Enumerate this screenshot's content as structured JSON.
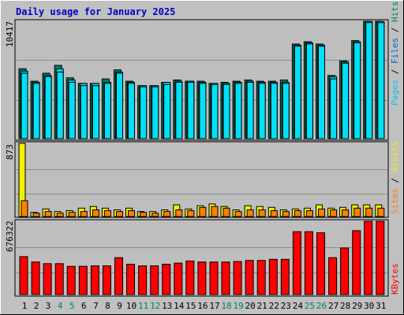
{
  "colors": {
    "background": "#c0c0c0",
    "panel": "#bebebe",
    "gridline": "#8c8c8c",
    "title": "#0000c8",
    "axis_text": "#000000",
    "weekend_text": "#00806a",
    "hits": "#00805c",
    "files": "#00c8e8",
    "pages": "#00e0f8",
    "visits": "#f0f000",
    "sites": "#ff8000",
    "kbytes": "#ff0000"
  },
  "chart_data": {
    "type": "bar",
    "title": "Daily usage for January 2025",
    "categories": [
      "1",
      "2",
      "3",
      "4",
      "5",
      "6",
      "7",
      "8",
      "9",
      "10",
      "11",
      "12",
      "13",
      "14",
      "15",
      "16",
      "17",
      "18",
      "19",
      "20",
      "21",
      "22",
      "23",
      "24",
      "25",
      "26",
      "27",
      "28",
      "29",
      "30",
      "31"
    ],
    "weekend_days": [
      "4",
      "5",
      "11",
      "12",
      "18",
      "19",
      "25",
      "26"
    ],
    "panels": [
      {
        "id": "hits-files-pages",
        "max_label": "10417",
        "ylim": [
          0,
          10417
        ],
        "legend": [
          {
            "label": "Pages",
            "color": "#00c8e8"
          },
          {
            "label": "/",
            "color": "#000000"
          },
          {
            "label": "Files",
            "color": "#0066cc"
          },
          {
            "label": "/",
            "color": "#000000"
          },
          {
            "label": "Hits",
            "color": "#00806a"
          }
        ],
        "series": [
          {
            "name": "Hits",
            "values": [
              6200,
              5100,
              5800,
              6500,
              5400,
              4900,
              4900,
              5300,
              6100,
              5100,
              4700,
              4700,
              5000,
              5200,
              5100,
              5100,
              4900,
              5000,
              5100,
              5200,
              5100,
              5100,
              5200,
              8400,
              8600,
              8400,
              5600,
              6900,
              8700,
              10417,
              10417
            ]
          },
          {
            "name": "Files",
            "values": [
              6000,
              5000,
              5600,
              6200,
              5200,
              4900,
              4900,
              5000,
              5900,
              5000,
              4700,
              4700,
              5000,
              5100,
              5100,
              5000,
              4900,
              4900,
              5000,
              5100,
              5000,
              5000,
              5000,
              8300,
              8500,
              8300,
              5500,
              6800,
              8600,
              10400,
              10400
            ]
          },
          {
            "name": "Pages",
            "values": [
              5800,
              4900,
              5500,
              5900,
              5000,
              4700,
              4700,
              4900,
              5800,
              4900,
              4600,
              4600,
              4800,
              5000,
              5000,
              4900,
              4800,
              4800,
              4900,
              5000,
              4900,
              4900,
              4900,
              8200,
              8400,
              8200,
              5300,
              6700,
              8500,
              10300,
              10300
            ]
          }
        ]
      },
      {
        "id": "visits-sites",
        "max_label": "873",
        "ylim": [
          0,
          873
        ],
        "legend": [
          {
            "label": "Sites",
            "color": "#ff8000"
          },
          {
            "label": "/",
            "color": "#000000"
          },
          {
            "label": "Visits",
            "color": "#f0f000"
          }
        ],
        "series": [
          {
            "name": "Visits",
            "values": [
              873,
              50,
              90,
              60,
              70,
              100,
              120,
              100,
              80,
              100,
              60,
              60,
              80,
              140,
              90,
              130,
              150,
              120,
              80,
              130,
              120,
              110,
              80,
              90,
              100,
              140,
              100,
              110,
              140,
              140,
              140
            ]
          },
          {
            "name": "Sites",
            "values": [
              190,
              40,
              60,
              40,
              50,
              60,
              80,
              70,
              60,
              70,
              50,
              40,
              60,
              80,
              70,
              110,
              120,
              100,
              60,
              80,
              80,
              70,
              60,
              70,
              70,
              90,
              80,
              80,
              100,
              100,
              100
            ]
          }
        ]
      },
      {
        "id": "kbytes",
        "max_label": "676322",
        "ylim": [
          0,
          676322
        ],
        "legend": [
          {
            "label": "KBytes",
            "color": "#ff0000"
          }
        ],
        "series": [
          {
            "name": "KBytes",
            "values": [
              350000,
              300000,
              285000,
              285000,
              260000,
              260000,
              265000,
              265000,
              340000,
              280000,
              265000,
              265000,
              280000,
              290000,
              310000,
              300000,
              300000,
              300000,
              305000,
              315000,
              315000,
              325000,
              325000,
              580000,
              580000,
              570000,
              340000,
              430000,
              590000,
              676322,
              676322
            ]
          }
        ]
      }
    ]
  }
}
